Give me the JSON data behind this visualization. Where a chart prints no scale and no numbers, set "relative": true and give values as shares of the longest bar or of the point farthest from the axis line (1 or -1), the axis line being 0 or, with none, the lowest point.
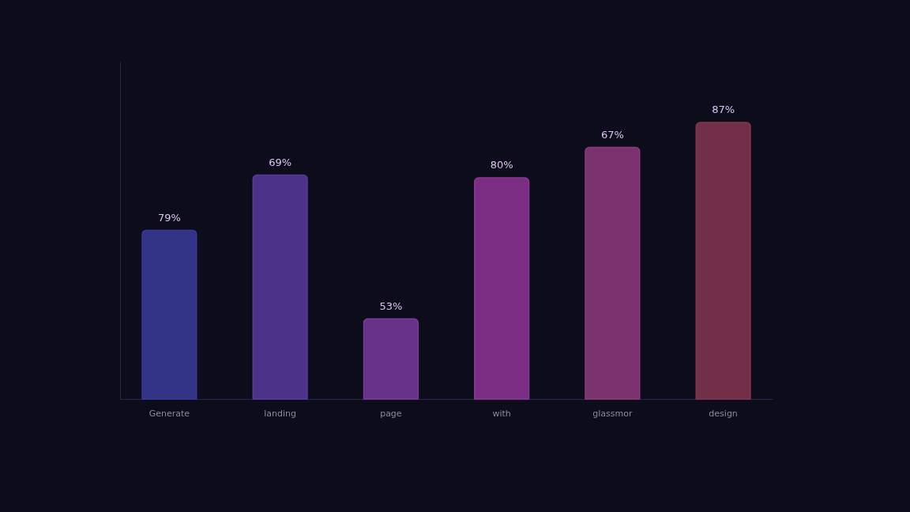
{
  "chart_data": {
    "type": "bar",
    "relative": true,
    "categories": [
      "Generate",
      "landing",
      "page",
      "with",
      "glassmor",
      "design"
    ],
    "values": [
      0.61,
      0.81,
      0.29,
      0.8,
      0.91,
      1.0
    ],
    "colors": [
      "#3a3a9c",
      "#5a3a9e",
      "#7a3a9e",
      "#8e3698",
      "#8e3a7e",
      "#843752"
    ],
    "annotations": [
      {
        "text": "79%",
        "x": "Generate",
        "y": 0.61
      },
      {
        "text": "69%",
        "x": "landing",
        "y": 0.81
      },
      {
        "text": "53%",
        "x": "page",
        "y": 0.29
      },
      {
        "text": "80%",
        "x": "with",
        "y": 0.8
      },
      {
        "text": "67%",
        "x": "glassmor",
        "y": 0.91
      },
      {
        "text": "87%",
        "x": "design",
        "y": 1.0
      }
    ]
  }
}
